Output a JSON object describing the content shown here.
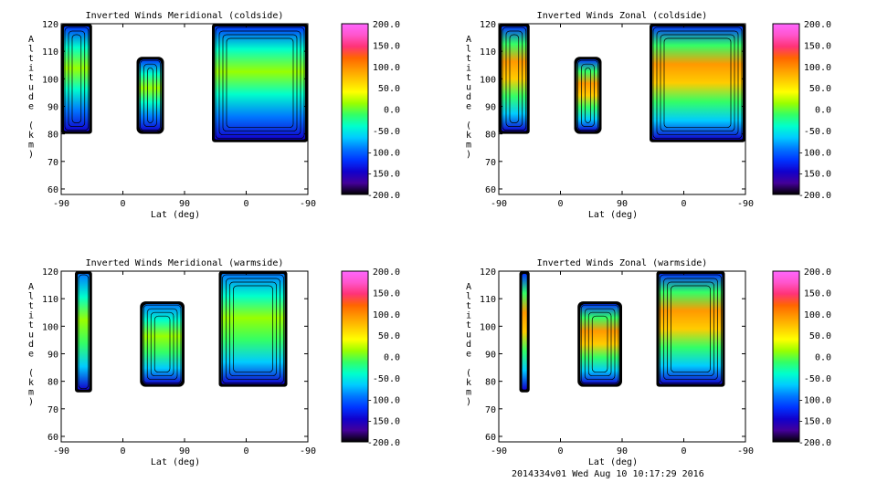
{
  "footer_text": "2014334v01 Wed Aug 10 10:17:29 2016",
  "colorbar": {
    "ticks": [
      "200.0",
      "150.0",
      "100.0",
      "50.0",
      "0.0",
      "-50.0",
      "-100.0",
      "-150.0",
      "-200.0"
    ],
    "colors": [
      "#ff66ff",
      "#ff55cc",
      "#ff3377",
      "#ff6600",
      "#ff9900",
      "#ffcc00",
      "#ffff00",
      "#99ff00",
      "#33ff66",
      "#00ffcc",
      "#00ccff",
      "#0077ff",
      "#0033ff",
      "#1100cc",
      "#440099",
      "#000000"
    ]
  },
  "chart_data": [
    {
      "type": "contour",
      "title": "Inverted Winds Meridional (coldside)",
      "xlabel": "Lat (deg)",
      "ylabel": "Altitude (km)",
      "x_ticks": [
        "-90",
        "0",
        "90",
        "0",
        "-90"
      ],
      "y_ticks": [
        "60",
        "70",
        "80",
        "90",
        "100",
        "110",
        "120"
      ],
      "ylim": [
        58,
        120
      ],
      "regions": [
        {
          "lat_start": -90,
          "lat_end": -45,
          "alt_bottom": 80,
          "alt_top": 120
        },
        {
          "lat_start": 20,
          "lat_end": 60,
          "alt_bottom": 80,
          "alt_top": 108
        },
        {
          "lat_start": 130,
          "lat_end": 270,
          "alt_bottom": 77,
          "alt_top": 120
        }
      ]
    },
    {
      "type": "contour",
      "title": "Inverted Winds Zonal (coldside)",
      "xlabel": "Lat (deg)",
      "ylabel": "Altitude (km)",
      "x_ticks": [
        "-90",
        "0",
        "90",
        "0",
        "-90"
      ],
      "y_ticks": [
        "60",
        "70",
        "80",
        "90",
        "100",
        "110",
        "120"
      ],
      "ylim": [
        58,
        120
      ],
      "regions": [
        {
          "lat_start": -90,
          "lat_end": -45,
          "alt_bottom": 80,
          "alt_top": 120
        },
        {
          "lat_start": 20,
          "lat_end": 60,
          "alt_bottom": 80,
          "alt_top": 108
        },
        {
          "lat_start": 130,
          "lat_end": 270,
          "alt_bottom": 77,
          "alt_top": 120
        }
      ]
    },
    {
      "type": "contour",
      "title": "Inverted Winds Meridional (warmside)",
      "xlabel": "Lat (deg)",
      "ylabel": "Altitude (km)",
      "x_ticks": [
        "-90",
        "0",
        "90",
        "0",
        "-90"
      ],
      "y_ticks": [
        "60",
        "70",
        "80",
        "90",
        "100",
        "110",
        "120"
      ],
      "ylim": [
        58,
        120
      ],
      "regions": [
        {
          "lat_start": -70,
          "lat_end": -45,
          "alt_bottom": 76,
          "alt_top": 120
        },
        {
          "lat_start": 25,
          "lat_end": 90,
          "alt_bottom": 78,
          "alt_top": 109
        },
        {
          "lat_start": 140,
          "lat_end": 240,
          "alt_bottom": 78,
          "alt_top": 120
        }
      ]
    },
    {
      "type": "contour",
      "title": "Inverted Winds Zonal (warmside)",
      "xlabel": "Lat (deg)",
      "ylabel": "Altitude (km)",
      "x_ticks": [
        "-90",
        "0",
        "90",
        "0",
        "-90"
      ],
      "y_ticks": [
        "60",
        "70",
        "80",
        "90",
        "100",
        "110",
        "120"
      ],
      "ylim": [
        58,
        120
      ],
      "regions": [
        {
          "lat_start": -60,
          "lat_end": -45,
          "alt_bottom": 76,
          "alt_top": 120
        },
        {
          "lat_start": 25,
          "lat_end": 90,
          "alt_bottom": 78,
          "alt_top": 109
        },
        {
          "lat_start": 140,
          "lat_end": 240,
          "alt_bottom": 78,
          "alt_top": 120
        }
      ]
    }
  ]
}
